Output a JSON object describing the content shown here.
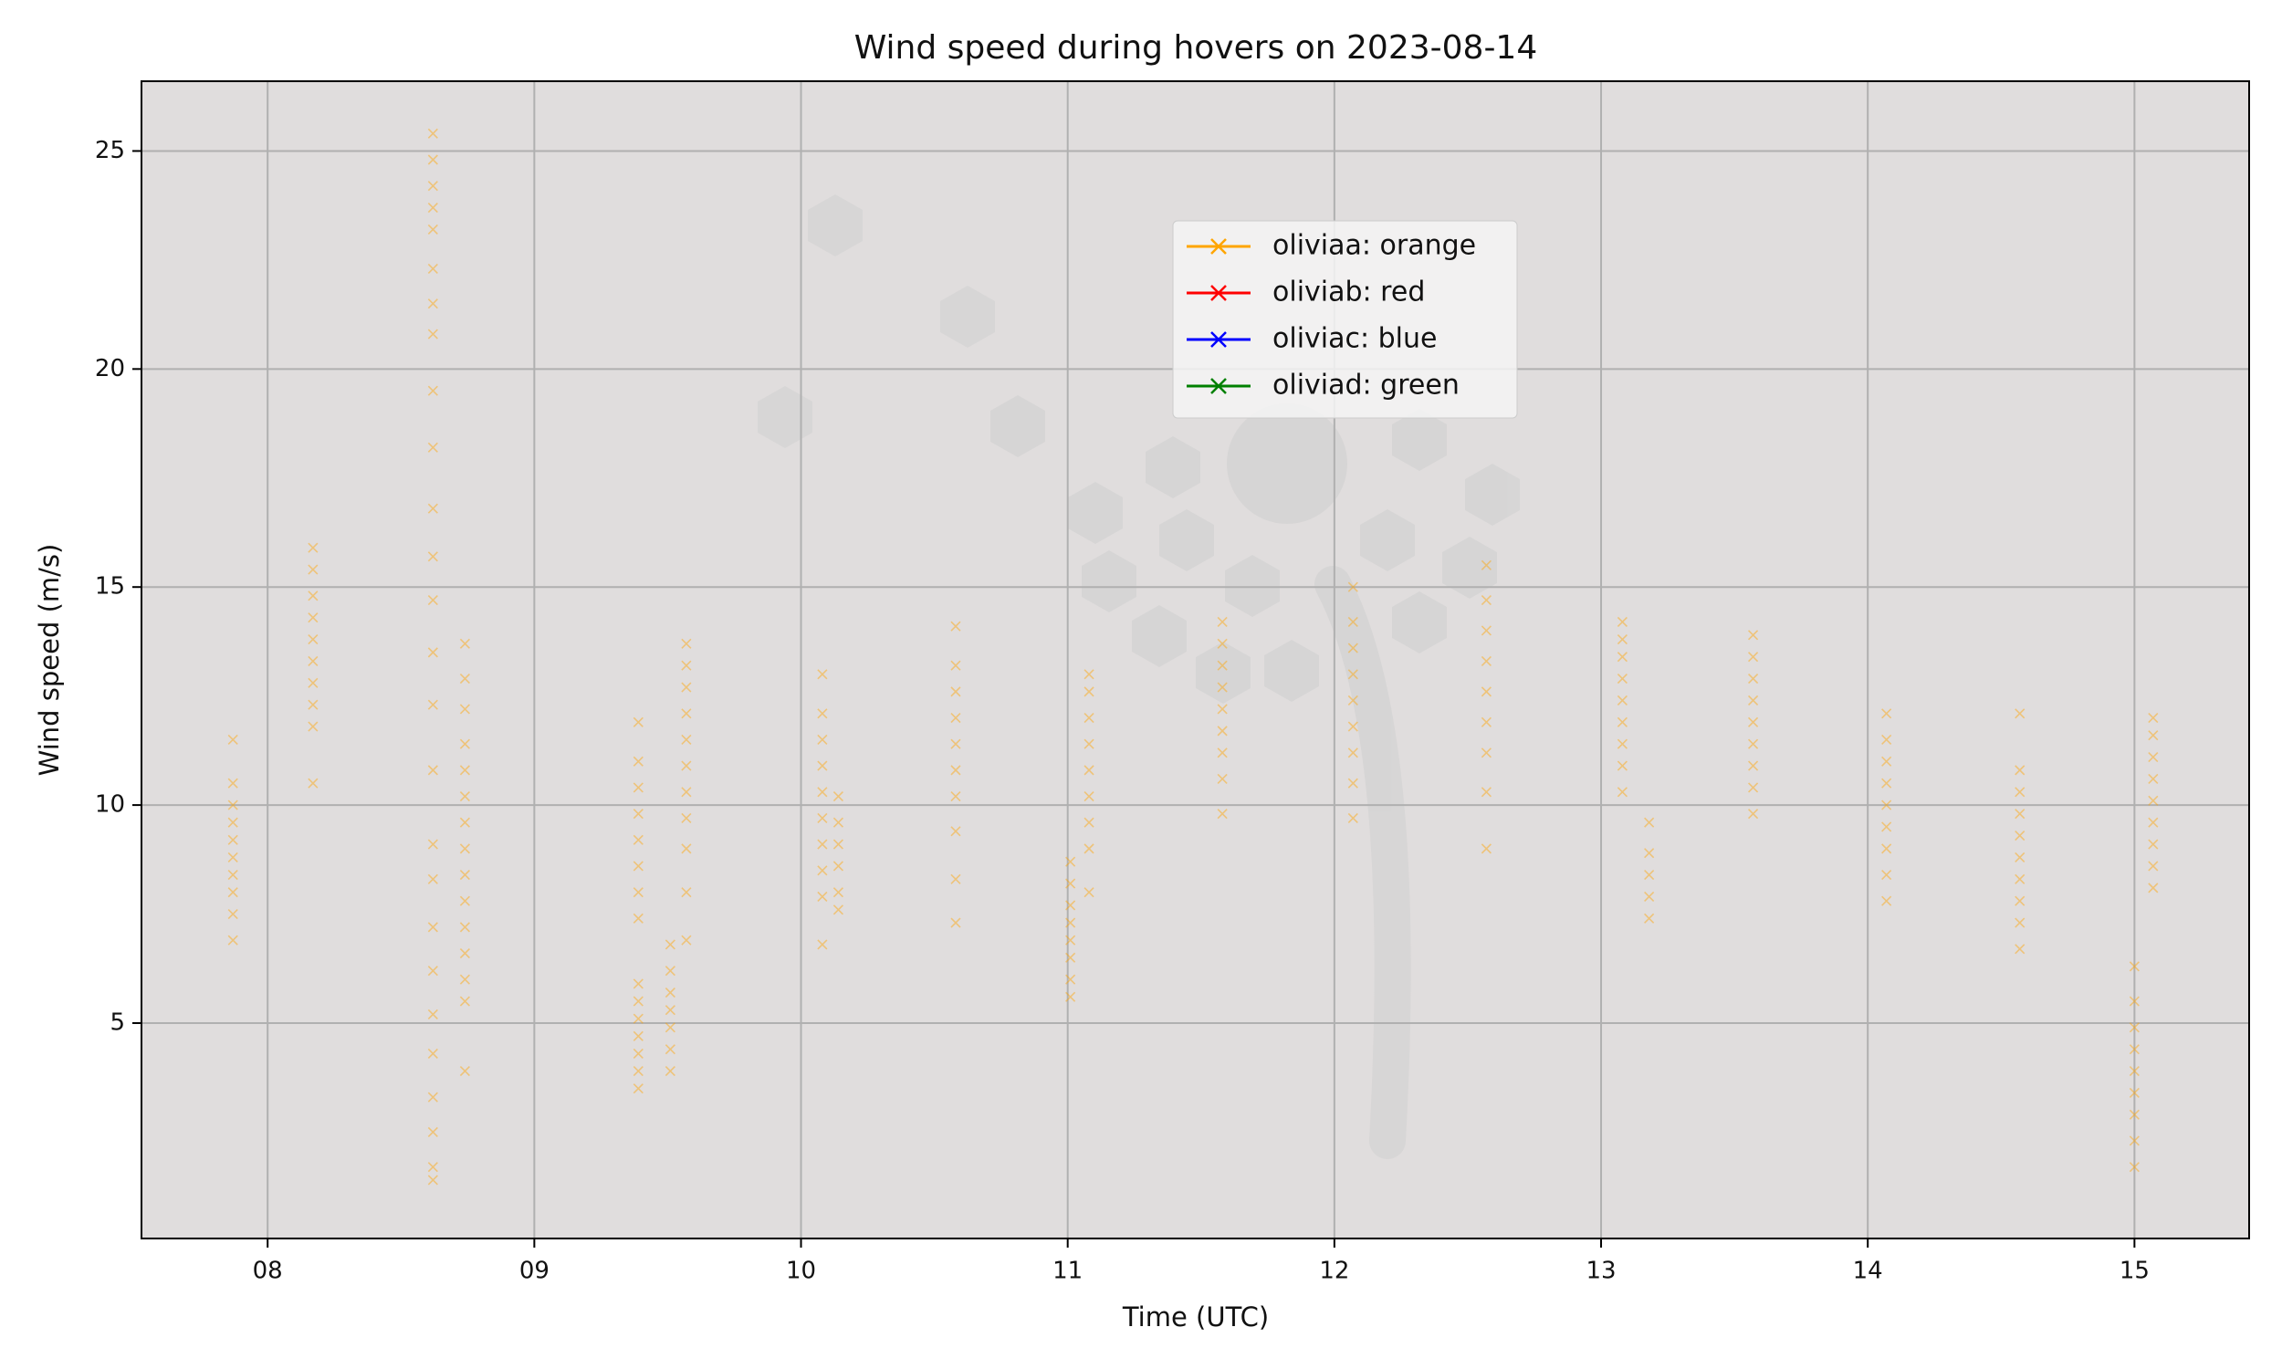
{
  "chart_data": {
    "type": "scatter",
    "title": "Wind speed during hovers on 2023-08-14",
    "x_label": "Time (UTC)",
    "y_label": "Wind speed (m/s)",
    "xlim": [
      7.527,
      15.43
    ],
    "ylim": [
      0.06,
      26.6
    ],
    "xticks": [
      {
        "value": 8,
        "label": "08"
      },
      {
        "value": 9,
        "label": "09"
      },
      {
        "value": 10,
        "label": "10"
      },
      {
        "value": 11,
        "label": "11"
      },
      {
        "value": 12,
        "label": "12"
      },
      {
        "value": 13,
        "label": "13"
      },
      {
        "value": 14,
        "label": "14"
      },
      {
        "value": 15,
        "label": "15"
      }
    ],
    "yticks": [
      5,
      10,
      15,
      20,
      25
    ],
    "grid": true,
    "series": [
      {
        "name": "oliviaa: orange",
        "color": "orange",
        "x": [
          7.87,
          7.87,
          7.87,
          7.87,
          7.87,
          7.87,
          7.87,
          7.87,
          7.87,
          7.87,
          8.17,
          8.17,
          8.17,
          8.17,
          8.17,
          8.17,
          8.17,
          8.17,
          8.17,
          8.17,
          8.62,
          8.62,
          8.62,
          8.62,
          8.62,
          8.62,
          8.62,
          8.62,
          8.62,
          8.62,
          8.62,
          8.62,
          8.62,
          8.62,
          8.62,
          8.62,
          8.62,
          8.62,
          8.62,
          8.62,
          8.62,
          8.62,
          8.62,
          8.62,
          8.62,
          8.62,
          8.74,
          8.74,
          8.74,
          8.74,
          8.74,
          8.74,
          8.74,
          8.74,
          8.74,
          8.74,
          8.74,
          8.74,
          8.74,
          8.74,
          8.74,
          9.39,
          9.39,
          9.39,
          9.39,
          9.39,
          9.39,
          9.39,
          9.39,
          9.39,
          9.39,
          9.39,
          9.39,
          9.39,
          9.39,
          9.39,
          9.51,
          9.51,
          9.51,
          9.51,
          9.51,
          9.51,
          9.51,
          9.57,
          9.57,
          9.57,
          9.57,
          9.57,
          9.57,
          9.57,
          9.57,
          9.57,
          9.57,
          9.57,
          10.08,
          10.08,
          10.08,
          10.08,
          10.08,
          10.08,
          10.08,
          10.08,
          10.08,
          10.08,
          10.14,
          10.14,
          10.14,
          10.14,
          10.14,
          10.14,
          10.58,
          10.58,
          10.58,
          10.58,
          10.58,
          10.58,
          10.58,
          10.58,
          10.58,
          10.58,
          11.01,
          11.01,
          11.01,
          11.01,
          11.01,
          11.01,
          11.01,
          11.01,
          11.08,
          11.08,
          11.08,
          11.08,
          11.08,
          11.08,
          11.08,
          11.08,
          11.08,
          11.58,
          11.58,
          11.58,
          11.58,
          11.58,
          11.58,
          11.58,
          11.58,
          11.58,
          12.07,
          12.07,
          12.07,
          12.07,
          12.07,
          12.07,
          12.07,
          12.07,
          12.07,
          12.57,
          12.57,
          12.57,
          12.57,
          12.57,
          12.57,
          12.57,
          12.57,
          12.57,
          13.08,
          13.08,
          13.08,
          13.08,
          13.08,
          13.08,
          13.08,
          13.08,
          13.08,
          13.18,
          13.18,
          13.18,
          13.18,
          13.18,
          13.57,
          13.57,
          13.57,
          13.57,
          13.57,
          13.57,
          13.57,
          13.57,
          13.57,
          14.07,
          14.07,
          14.07,
          14.07,
          14.07,
          14.07,
          14.07,
          14.07,
          14.07,
          14.57,
          14.57,
          14.57,
          14.57,
          14.57,
          14.57,
          14.57,
          14.57,
          14.57,
          14.57,
          15.0,
          15.0,
          15.0,
          15.0,
          15.0,
          15.0,
          15.0,
          15.0,
          15.0,
          15.07,
          15.07,
          15.07,
          15.07,
          15.07,
          15.07,
          15.07,
          15.07,
          15.07
        ],
        "values": [
          6.9,
          7.5,
          8.0,
          8.4,
          8.8,
          9.2,
          9.6,
          10.0,
          10.5,
          11.5,
          10.5,
          11.8,
          12.3,
          12.8,
          13.3,
          13.8,
          14.3,
          14.8,
          15.4,
          15.9,
          1.4,
          1.7,
          2.5,
          3.3,
          4.3,
          5.2,
          6.2,
          7.2,
          8.3,
          9.1,
          10.8,
          12.3,
          13.5,
          14.7,
          15.7,
          16.8,
          18.2,
          19.5,
          20.8,
          21.5,
          22.3,
          23.2,
          23.7,
          24.2,
          24.8,
          25.4,
          3.9,
          5.5,
          6.0,
          6.6,
          7.2,
          7.8,
          8.4,
          9.0,
          9.6,
          10.2,
          10.8,
          11.4,
          12.2,
          12.9,
          13.7,
          3.5,
          3.9,
          4.3,
          4.7,
          5.1,
          5.5,
          5.9,
          7.4,
          8.0,
          8.6,
          9.2,
          9.8,
          10.4,
          11.0,
          11.9,
          3.9,
          4.4,
          4.9,
          5.3,
          5.7,
          6.2,
          6.8,
          6.9,
          8.0,
          9.0,
          9.7,
          10.3,
          10.9,
          11.5,
          12.1,
          12.7,
          13.2,
          13.7,
          6.8,
          7.9,
          8.5,
          9.1,
          9.7,
          10.3,
          10.9,
          11.5,
          12.1,
          13.0,
          7.6,
          8.0,
          8.6,
          9.1,
          9.6,
          10.2,
          7.3,
          8.3,
          9.4,
          10.2,
          10.8,
          11.4,
          12.0,
          12.6,
          13.2,
          14.1,
          5.6,
          6.0,
          6.5,
          6.9,
          7.3,
          7.7,
          8.2,
          8.7,
          8.0,
          9.0,
          9.6,
          10.2,
          10.8,
          11.4,
          12.0,
          12.6,
          13.0,
          9.8,
          10.6,
          11.2,
          11.7,
          12.2,
          12.7,
          13.2,
          13.7,
          14.2,
          9.7,
          10.5,
          11.2,
          11.8,
          12.4,
          13.0,
          13.6,
          14.2,
          15.0,
          9.0,
          10.3,
          11.2,
          11.9,
          12.6,
          13.3,
          14.0,
          14.7,
          15.5,
          10.3,
          10.9,
          11.4,
          11.9,
          12.4,
          12.9,
          13.4,
          13.8,
          14.2,
          7.4,
          7.9,
          8.4,
          8.9,
          9.6,
          9.8,
          10.4,
          10.9,
          11.4,
          11.9,
          12.4,
          12.9,
          13.4,
          13.9,
          7.8,
          8.4,
          9.0,
          9.5,
          10.0,
          10.5,
          11.0,
          11.5,
          12.1,
          6.7,
          7.3,
          7.8,
          8.3,
          8.8,
          9.3,
          9.8,
          10.3,
          10.8,
          12.1,
          1.7,
          2.3,
          2.9,
          3.4,
          3.9,
          4.4,
          4.9,
          5.5,
          6.3,
          8.1,
          8.6,
          9.1,
          9.6,
          10.1,
          10.6,
          11.1,
          11.6,
          12.0
        ]
      },
      {
        "name": "oliviab: red",
        "color": "red",
        "x": [],
        "values": []
      },
      {
        "name": "oliviac: blue",
        "color": "blue",
        "x": [],
        "values": []
      },
      {
        "name": "oliviad: green",
        "color": "green",
        "x": [],
        "values": []
      }
    ]
  }
}
